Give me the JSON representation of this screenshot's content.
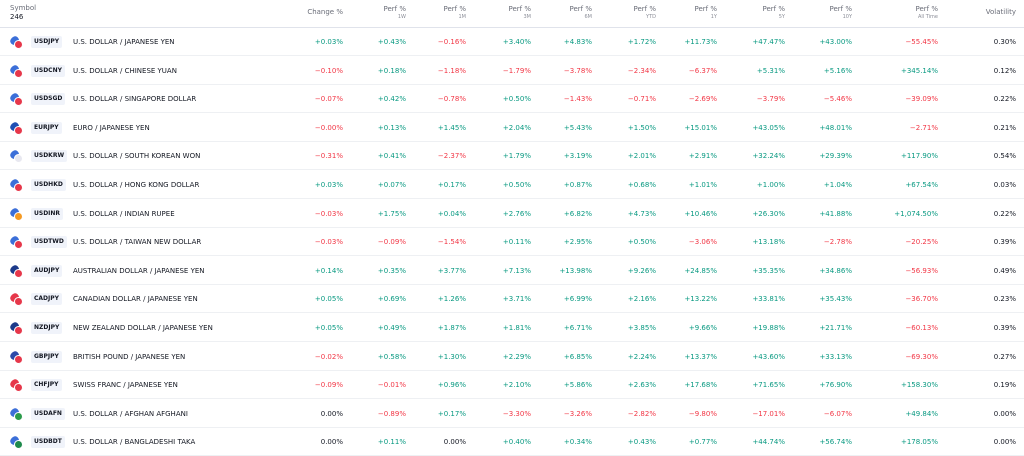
{
  "header": {
    "symbol": "Symbol",
    "count": "246",
    "change": "Change %",
    "perf_label": "Perf %",
    "periods": [
      "1W",
      "1M",
      "3M",
      "6M",
      "YTD",
      "1Y",
      "5Y",
      "10Y",
      "All Time"
    ],
    "volatility": "Volatility"
  },
  "rows": [
    {
      "ticker": "USDJPY",
      "name": "U.S. DOLLAR / JAPANESE YEN",
      "flags": [
        "#3c6fd8",
        "#e6374a"
      ],
      "change": "+0.03%",
      "perf": [
        "+0.43%",
        "−0.16%",
        "+3.40%",
        "+4.83%",
        "+1.72%",
        "+11.73%",
        "+47.47%",
        "+43.00%",
        "−55.45%"
      ],
      "volatility": "0.30%"
    },
    {
      "ticker": "USDCNY",
      "name": "U.S. DOLLAR / CHINESE YUAN",
      "flags": [
        "#3c6fd8",
        "#e6374a"
      ],
      "change": "−0.10%",
      "perf": [
        "+0.18%",
        "−1.18%",
        "−1.79%",
        "−3.78%",
        "−2.34%",
        "−6.37%",
        "+5.31%",
        "+5.16%",
        "+345.14%"
      ],
      "volatility": "0.12%"
    },
    {
      "ticker": "USDSGD",
      "name": "U.S. DOLLAR / SINGAPORE DOLLAR",
      "flags": [
        "#3c6fd8",
        "#e6374a"
      ],
      "change": "−0.07%",
      "perf": [
        "+0.42%",
        "−0.78%",
        "+0.50%",
        "−1.43%",
        "−0.71%",
        "−2.69%",
        "−3.79%",
        "−5.46%",
        "−39.09%"
      ],
      "volatility": "0.22%"
    },
    {
      "ticker": "EURJPY",
      "name": "EURO / JAPANESE YEN",
      "flags": [
        "#1f4fb3",
        "#e6374a"
      ],
      "change": "−0.00%",
      "perf": [
        "+0.13%",
        "+1.45%",
        "+2.04%",
        "+5.43%",
        "+1.50%",
        "+15.01%",
        "+43.05%",
        "+48.01%",
        "−2.71%"
      ],
      "volatility": "0.21%"
    },
    {
      "ticker": "USDKRW",
      "name": "U.S. DOLLAR / SOUTH KOREAN WON",
      "flags": [
        "#3c6fd8",
        "#e8e8f0"
      ],
      "change": "−0.31%",
      "perf": [
        "+0.41%",
        "−2.37%",
        "+1.79%",
        "+3.19%",
        "+2.01%",
        "+2.91%",
        "+32.24%",
        "+29.39%",
        "+117.90%"
      ],
      "volatility": "0.54%"
    },
    {
      "ticker": "USDHKD",
      "name": "U.S. DOLLAR / HONG KONG DOLLAR",
      "flags": [
        "#3c6fd8",
        "#e6374a"
      ],
      "change": "+0.03%",
      "perf": [
        "+0.07%",
        "+0.17%",
        "+0.50%",
        "+0.87%",
        "+0.68%",
        "+1.01%",
        "+1.00%",
        "+1.04%",
        "+67.54%"
      ],
      "volatility": "0.03%"
    },
    {
      "ticker": "USDINR",
      "name": "U.S. DOLLAR / INDIAN RUPEE",
      "flags": [
        "#3c6fd8",
        "#f59a23"
      ],
      "change": "−0.03%",
      "perf": [
        "+1.75%",
        "+0.04%",
        "+2.76%",
        "+6.82%",
        "+4.73%",
        "+10.46%",
        "+26.30%",
        "+41.88%",
        "+1,074.50%"
      ],
      "volatility": "0.22%"
    },
    {
      "ticker": "USDTWD",
      "name": "U.S. DOLLAR / TAIWAN NEW DOLLAR",
      "flags": [
        "#3c6fd8",
        "#e6374a"
      ],
      "change": "−0.03%",
      "perf": [
        "−0.09%",
        "−1.54%",
        "+0.11%",
        "+2.95%",
        "+0.50%",
        "−3.06%",
        "+13.18%",
        "−2.78%",
        "−20.25%"
      ],
      "volatility": "0.39%"
    },
    {
      "ticker": "AUDJPY",
      "name": "AUSTRALIAN DOLLAR / JAPANESE YEN",
      "flags": [
        "#1c3a8a",
        "#e6374a"
      ],
      "change": "+0.14%",
      "perf": [
        "+0.35%",
        "+3.77%",
        "+7.13%",
        "+13.98%",
        "+9.26%",
        "+24.85%",
        "+35.35%",
        "+34.86%",
        "−56.93%"
      ],
      "volatility": "0.49%"
    },
    {
      "ticker": "CADJPY",
      "name": "CANADIAN DOLLAR / JAPANESE YEN",
      "flags": [
        "#e6374a",
        "#e6374a"
      ],
      "change": "+0.05%",
      "perf": [
        "+0.69%",
        "+1.26%",
        "+3.71%",
        "+6.99%",
        "+2.16%",
        "+13.22%",
        "+33.81%",
        "+35.43%",
        "−36.70%"
      ],
      "volatility": "0.23%"
    },
    {
      "ticker": "NZDJPY",
      "name": "NEW ZEALAND DOLLAR / JAPANESE YEN",
      "flags": [
        "#1c3a8a",
        "#e6374a"
      ],
      "change": "+0.05%",
      "perf": [
        "+0.49%",
        "+1.87%",
        "+1.81%",
        "+6.71%",
        "+3.85%",
        "+9.66%",
        "+19.88%",
        "+21.71%",
        "−60.13%"
      ],
      "volatility": "0.39%"
    },
    {
      "ticker": "GBPJPY",
      "name": "BRITISH POUND / JAPANESE YEN",
      "flags": [
        "#2d4aa8",
        "#e6374a"
      ],
      "change": "−0.02%",
      "perf": [
        "+0.58%",
        "+1.30%",
        "+2.29%",
        "+6.85%",
        "+2.24%",
        "+13.37%",
        "+43.60%",
        "+33.13%",
        "−69.30%"
      ],
      "volatility": "0.27%"
    },
    {
      "ticker": "CHFJPY",
      "name": "SWISS FRANC / JAPANESE YEN",
      "flags": [
        "#e6374a",
        "#e6374a"
      ],
      "change": "−0.09%",
      "perf": [
        "−0.01%",
        "+0.96%",
        "+2.10%",
        "+5.86%",
        "+2.63%",
        "+17.68%",
        "+71.65%",
        "+76.90%",
        "+158.30%"
      ],
      "volatility": "0.19%"
    },
    {
      "ticker": "USDAFN",
      "name": "U.S. DOLLAR / AFGHAN AFGHANI",
      "flags": [
        "#3c6fd8",
        "#2b9b4a"
      ],
      "change": "0.00%",
      "perf": [
        "−0.89%",
        "+0.17%",
        "−3.30%",
        "−3.26%",
        "−2.82%",
        "−9.80%",
        "−17.01%",
        "−6.07%",
        "+49.84%"
      ],
      "volatility": "0.00%"
    },
    {
      "ticker": "USDBDT",
      "name": "U.S. DOLLAR / BANGLADESHI TAKA",
      "flags": [
        "#3c6fd8",
        "#1e8a4c"
      ],
      "change": "0.00%",
      "perf": [
        "+0.11%",
        "0.00%",
        "+0.40%",
        "+0.34%",
        "+0.43%",
        "+0.77%",
        "+44.74%",
        "+56.74%",
        "+178.05%"
      ],
      "volatility": "0.00%"
    }
  ]
}
